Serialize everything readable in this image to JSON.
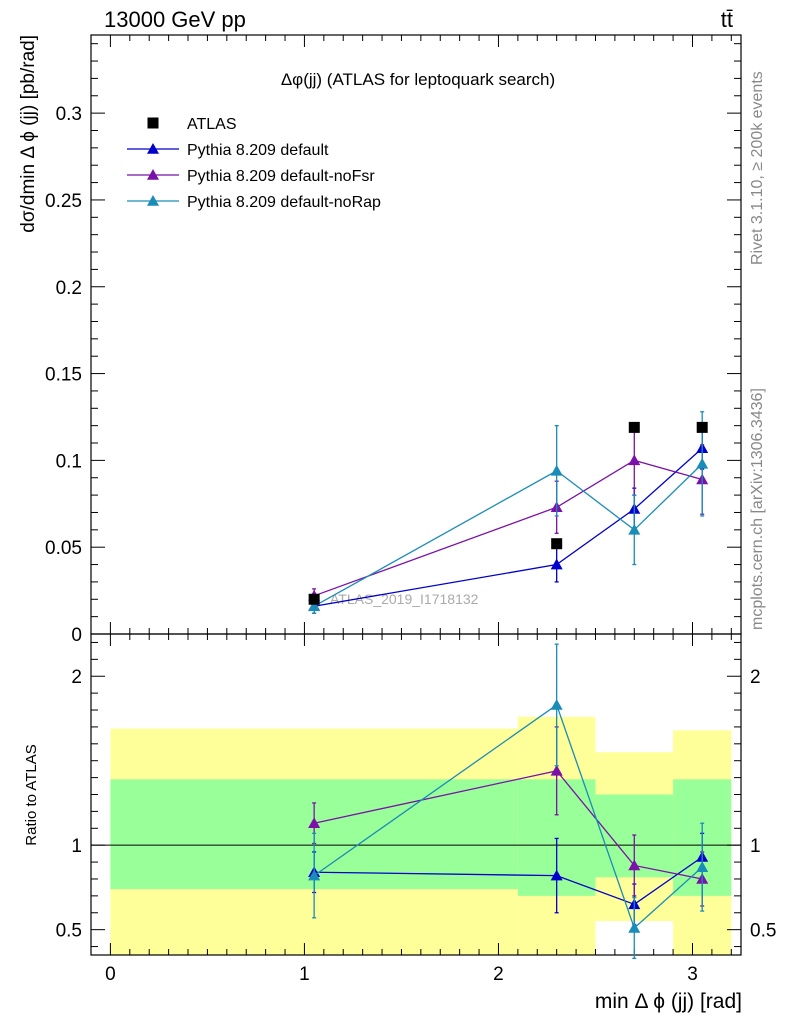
{
  "header": {
    "energy_label": "13000 GeV pp",
    "process_label": "tt̄"
  },
  "side_text": {
    "rivet": "Rivet 3.1.10, ≥ 200k events",
    "mcplots": "mcplots.cern.ch [arXiv:1306.3436]"
  },
  "chart_data": [
    {
      "type": "scatter",
      "panel": "main",
      "title": "Δφ(jj) (ATLAS for leptoquark search)",
      "ylabel": "dσ/dmin Δ ϕ (jj) [pb/rad]",
      "xlim": [
        -0.1,
        3.25
      ],
      "ylim": [
        0,
        0.345
      ],
      "yticks": [
        0,
        0.05,
        0.1,
        0.15,
        0.2,
        0.25,
        0.3
      ],
      "ytick_labels": [
        "0",
        "0.05",
        "0.1",
        "0.15",
        "0.2",
        "0.25",
        "0.3"
      ],
      "watermark": "ATLAS_2019_I1718132",
      "legend_position": "top-left",
      "series": [
        {
          "name": "ATLAS",
          "color": "#000000",
          "marker": "square",
          "x": [
            1.05,
            2.3,
            2.7,
            3.05
          ],
          "y": [
            0.02,
            0.052,
            0.119,
            0.119
          ]
        },
        {
          "name": "Pythia 8.209 default",
          "color": "#0000cc",
          "marker": "triangle",
          "x": [
            1.05,
            2.3,
            2.7,
            3.05
          ],
          "y": [
            0.016,
            0.04,
            0.072,
            0.107
          ],
          "err": [
            0.004,
            0.01,
            0.012,
            0.012
          ]
        },
        {
          "name": "Pythia 8.209 default-noFsr",
          "color": "#7b11a8",
          "marker": "triangle",
          "x": [
            1.05,
            2.3,
            2.7,
            3.05
          ],
          "y": [
            0.022,
            0.073,
            0.1,
            0.089
          ],
          "err": [
            0.004,
            0.015,
            0.02,
            0.02
          ]
        },
        {
          "name": "Pythia 8.209 default-noRap",
          "color": "#1a8cb8",
          "marker": "triangle",
          "x": [
            1.05,
            2.3,
            2.7,
            3.05
          ],
          "y": [
            0.016,
            0.094,
            0.06,
            0.098
          ],
          "err": [
            0.004,
            0.026,
            0.02,
            0.03
          ]
        }
      ]
    },
    {
      "type": "scatter",
      "panel": "ratio",
      "xlabel": "min Δ ϕ (jj) [rad]",
      "ylabel": "Ratio to ATLAS",
      "xlim": [
        -0.1,
        3.25
      ],
      "ylim": [
        0.35,
        2.25
      ],
      "xticks": [
        0,
        1,
        2,
        3
      ],
      "xtick_labels": [
        "0",
        "1",
        "2",
        "3"
      ],
      "yticks": [
        0.5,
        1,
        2
      ],
      "ytick_labels": [
        "0.5",
        "1",
        "2"
      ],
      "bands": [
        {
          "x0": 0.0,
          "x1": 2.1,
          "yellow": [
            0.35,
            1.69
          ],
          "green": [
            0.74,
            1.39
          ]
        },
        {
          "x0": 2.1,
          "x1": 2.5,
          "yellow": [
            0.35,
            1.76
          ],
          "green": [
            0.7,
            1.39
          ]
        },
        {
          "x0": 2.5,
          "x1": 2.9,
          "yellow": [
            0.55,
            1.55
          ],
          "green": [
            0.81,
            1.3
          ]
        },
        {
          "x0": 2.9,
          "x1": 3.2,
          "yellow": [
            0.35,
            1.68
          ],
          "green": [
            0.7,
            1.39
          ]
        }
      ],
      "yellow_gap": {
        "x0": 2.5,
        "x1": 2.9,
        "y0": 0.35,
        "y1": 0.55
      },
      "series": [
        {
          "name": "Pythia 8.209 default",
          "color": "#0000cc",
          "x": [
            1.05,
            2.3,
            2.7,
            3.05
          ],
          "y": [
            0.84,
            0.82,
            0.65,
            0.93
          ],
          "err": [
            0.12,
            0.22,
            0.12,
            0.14
          ]
        },
        {
          "name": "Pythia 8.209 default-noFsr",
          "color": "#7b11a8",
          "x": [
            1.05,
            2.3,
            2.7,
            3.05
          ],
          "y": [
            1.13,
            1.44,
            0.88,
            0.8
          ],
          "err": [
            0.12,
            0.26,
            0.18,
            0.16
          ]
        },
        {
          "name": "Pythia 8.209 default-noRap",
          "color": "#1a8cb8",
          "x": [
            1.05,
            2.3,
            2.7,
            3.05
          ],
          "y": [
            0.82,
            1.83,
            0.51,
            0.87
          ],
          "err": [
            0.25,
            0.36,
            0.18,
            0.26
          ]
        }
      ]
    }
  ]
}
